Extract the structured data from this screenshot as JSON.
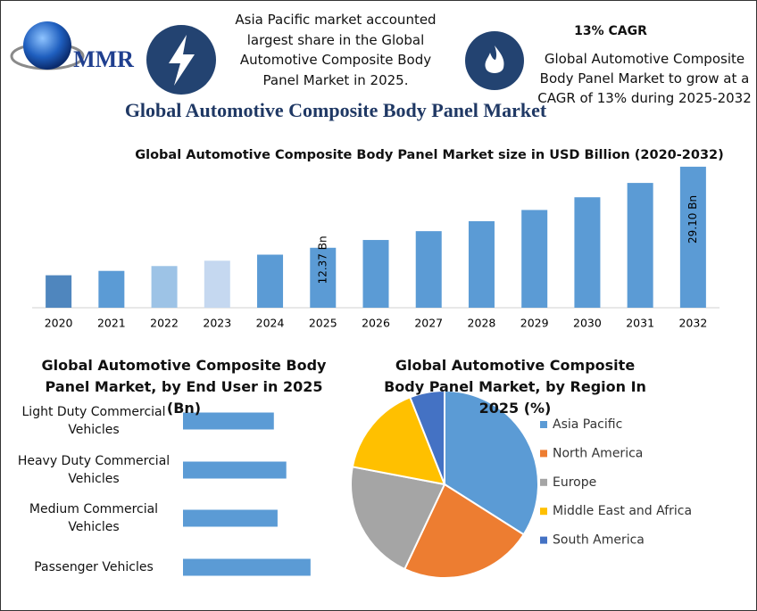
{
  "logo": "MMR",
  "header": {
    "share_note": "Asia Pacific market accounted largest share in the Global Automotive Composite Body Panel Market in 2025.",
    "cagr_title": "13% CAGR",
    "cagr_note": "Global Automotive Composite Body Panel Market to grow at a CAGR of 13% during 2025-2032"
  },
  "title": "Global Automotive Composite Body Panel Market",
  "chart_data": [
    {
      "type": "bar",
      "title": "Global Automotive Composite Body Panel Market size in USD Billion (2020-2032)",
      "categories": [
        "2020",
        "2021",
        "2022",
        "2023",
        "2024",
        "2025",
        "2026",
        "2027",
        "2028",
        "2029",
        "2030",
        "2031",
        "2032"
      ],
      "values": [
        6.7,
        7.6,
        8.6,
        9.7,
        10.95,
        12.37,
        13.98,
        15.8,
        17.85,
        20.17,
        22.79,
        25.75,
        29.1
      ],
      "value_labels": [
        null,
        null,
        null,
        null,
        null,
        "12.37 Bn",
        null,
        null,
        null,
        null,
        null,
        null,
        "29.10 Bn"
      ],
      "colors": [
        "#4f86be",
        "#5b9bd5",
        "#9dc3e6",
        "#c5d8f0",
        "#5b9bd5",
        "#5b9bd5",
        "#5b9bd5",
        "#5b9bd5",
        "#5b9bd5",
        "#5b9bd5",
        "#5b9bd5",
        "#5b9bd5",
        "#5b9bd5"
      ],
      "ylim": [
        0,
        30
      ]
    },
    {
      "type": "hbar",
      "title": "Global Automotive Composite Body Panel Market, by End User in 2025 (Bn)",
      "categories": [
        "Light Duty Commercial Vehicles",
        "Heavy Duty Commercial Vehicles",
        "Medium Commercial Vehicles",
        "Passenger Vehicles"
      ],
      "values": [
        2.7,
        3.07,
        2.81,
        3.79
      ],
      "color": "#5b9bd5",
      "xlim": [
        0,
        5.2
      ]
    },
    {
      "type": "pie",
      "title": "Global Automotive Composite Body Panel Market, by Region In 2025 (%)",
      "categories": [
        "Asia Pacific",
        "North America",
        "Europe",
        "Middle East and Africa",
        "South America"
      ],
      "values": [
        34,
        23,
        21,
        16,
        6
      ],
      "colors": [
        "#5b9bd5",
        "#ed7d31",
        "#a5a5a5",
        "#ffc000",
        "#4472c4"
      ],
      "legend": "right"
    }
  ]
}
